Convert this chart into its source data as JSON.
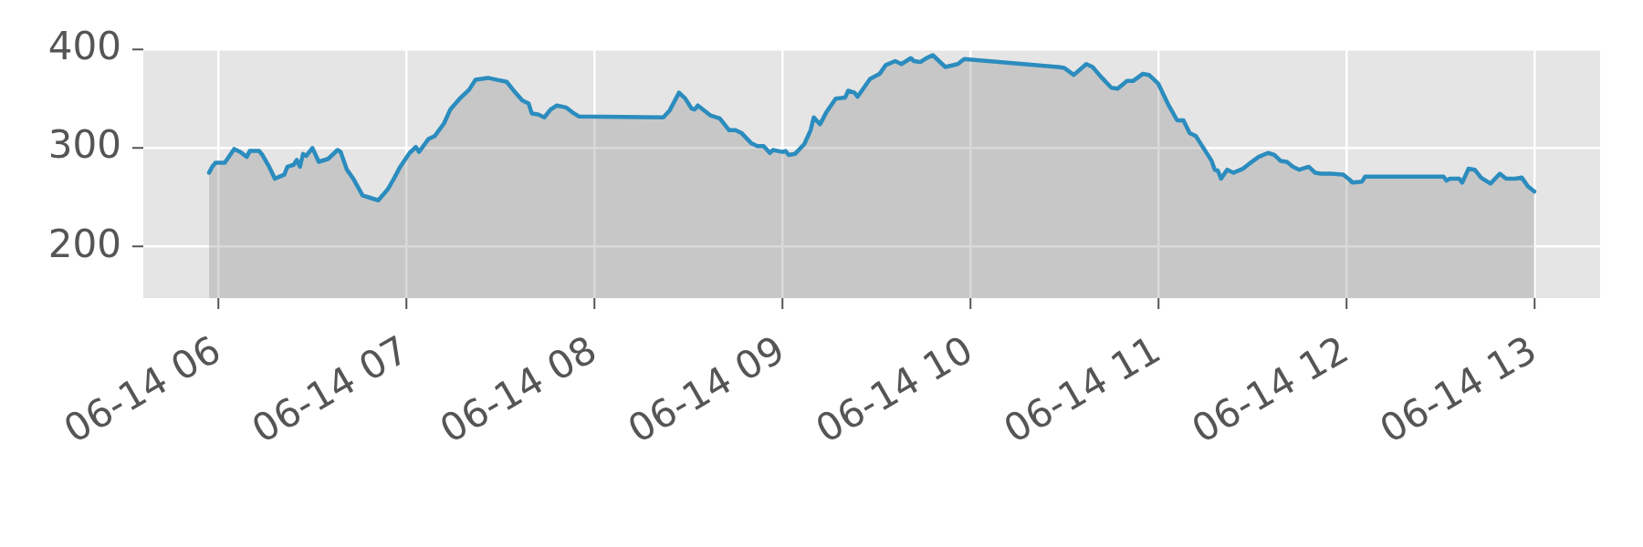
{
  "chart_data": {
    "type": "area",
    "x": [
      "--06-14T05:57",
      "--06-14T05:58",
      "--06-14T05:59",
      "--06-14T06:02",
      "--06-14T06:05",
      "--06-14T06:07",
      "--06-14T06:09",
      "--06-14T06:10",
      "--06-14T06:13",
      "--06-14T06:14",
      "--06-14T06:16",
      "--06-14T06:18",
      "--06-14T06:21",
      "--06-14T06:22",
      "--06-14T06:24",
      "--06-14T06:25",
      "--06-14T06:26",
      "--06-14T06:27",
      "--06-14T06:28",
      "--06-14T06:30",
      "--06-14T06:32",
      "--06-14T06:35",
      "--06-14T06:38",
      "--06-14T06:39",
      "--06-14T06:41",
      "--06-14T06:43",
      "--06-14T06:46",
      "--06-14T06:48",
      "--06-14T06:51",
      "--06-14T06:54",
      "--06-14T06:56",
      "--06-14T06:58",
      "--06-14T07:01",
      "--06-14T07:03",
      "--06-14T07:04",
      "--06-14T07:07",
      "--06-14T07:09",
      "--06-14T07:12",
      "--06-14T07:14",
      "--06-14T07:17",
      "--06-14T07:20",
      "--06-14T07:22",
      "--06-14T07:26",
      "--06-14T07:29",
      "--06-14T07:32",
      "--06-14T07:34",
      "--06-14T07:37",
      "--06-14T07:39",
      "--06-14T07:40",
      "--06-14T07:42",
      "--06-14T07:44",
      "--06-14T07:46",
      "--06-14T07:48",
      "--06-14T07:51",
      "--06-14T07:53",
      "--06-14T07:55",
      "--06-14T08:22",
      "--06-14T08:24",
      "--06-14T08:27",
      "--06-14T08:29",
      "--06-14T08:31",
      "--06-14T08:32",
      "--06-14T08:33",
      "--06-14T08:37",
      "--06-14T08:40",
      "--06-14T08:43",
      "--06-14T08:45",
      "--06-14T08:47",
      "--06-14T08:50",
      "--06-14T08:52",
      "--06-14T08:54",
      "--06-14T08:56",
      "--06-14T08:57",
      "--06-14T09:00",
      "--06-14T09:01",
      "--06-14T09:02",
      "--06-14T09:04",
      "--06-14T09:07",
      "--06-14T09:09",
      "--06-14T09:10",
      "--06-14T09:12",
      "--06-14T09:14",
      "--06-14T09:17",
      "--06-14T09:20",
      "--06-14T09:21",
      "--06-14T09:23",
      "--06-14T09:24",
      "--06-14T09:26",
      "--06-14T09:28",
      "--06-14T09:31",
      "--06-14T09:33",
      "--06-14T09:36",
      "--06-14T09:38",
      "--06-14T09:41",
      "--06-14T09:42",
      "--06-14T09:44",
      "--06-14T09:46",
      "--06-14T09:48",
      "--06-14T09:50",
      "--06-14T09:52",
      "--06-14T09:56",
      "--06-14T09:58",
      "--06-14T10:28",
      "--06-14T10:30",
      "--06-14T10:33",
      "--06-14T10:37",
      "--06-14T10:39",
      "--06-14T10:42",
      "--06-14T10:45",
      "--06-14T10:47",
      "--06-14T10:50",
      "--06-14T10:52",
      "--06-14T10:55",
      "--06-14T10:57",
      "--06-14T11:00",
      "--06-14T11:03",
      "--06-14T11:06",
      "--06-14T11:08",
      "--06-14T11:10",
      "--06-14T11:12",
      "--06-14T11:15",
      "--06-14T11:17",
      "--06-14T11:18",
      "--06-14T11:19",
      "--06-14T11:20",
      "--06-14T11:22",
      "--06-14T11:24",
      "--06-14T11:27",
      "--06-14T11:29",
      "--06-14T11:32",
      "--06-14T11:35",
      "--06-14T11:37",
      "--06-14T11:39",
      "--06-14T11:41",
      "--06-14T11:43",
      "--06-14T11:45",
      "--06-14T11:48",
      "--06-14T11:50",
      "--06-14T11:52",
      "--06-14T11:55",
      "--06-14T11:59",
      "--06-14T12:01",
      "--06-14T12:02",
      "--06-14T12:05",
      "--06-14T12:06",
      "--06-14T12:31",
      "--06-14T12:32",
      "--06-14T12:33",
      "--06-14T12:36",
      "--06-14T12:37",
      "--06-14T12:39",
      "--06-14T12:41",
      "--06-14T12:43",
      "--06-14T12:46",
      "--06-14T12:49",
      "--06-14T12:51",
      "--06-14T12:54",
      "--06-14T12:56",
      "--06-14T12:58",
      "--06-14T13:00"
    ],
    "values": [
      275,
      281,
      285,
      285,
      299,
      296,
      291,
      297,
      297,
      293,
      282,
      269,
      273,
      281,
      283,
      288,
      281,
      294,
      292,
      300,
      286,
      289,
      298,
      296,
      278,
      269,
      252,
      250,
      247,
      258,
      269,
      281,
      295,
      301,
      296,
      309,
      312,
      325,
      339,
      350,
      359,
      369,
      371,
      369,
      367,
      359,
      348,
      345,
      335,
      334,
      331,
      339,
      343,
      341,
      336,
      332,
      331,
      338,
      356,
      350,
      340,
      339,
      343,
      333,
      330,
      318,
      318,
      315,
      305,
      302,
      302,
      295,
      298,
      296,
      297,
      293,
      294,
      304,
      318,
      331,
      324,
      336,
      350,
      351,
      358,
      356,
      352,
      361,
      370,
      375,
      384,
      388,
      385,
      391,
      388,
      387,
      391,
      394,
      388,
      382,
      385,
      390,
      382,
      381,
      374,
      385,
      382,
      371,
      361,
      360,
      368,
      368,
      375,
      374,
      365,
      345,
      328,
      328,
      315,
      312,
      297,
      287,
      278,
      277,
      269,
      278,
      275,
      279,
      284,
      291,
      295,
      293,
      287,
      286,
      281,
      278,
      281,
      275,
      274,
      274,
      273,
      268,
      265,
      266,
      271,
      271,
      267,
      269,
      269,
      265,
      279,
      278,
      270,
      264,
      274,
      269,
      269,
      270,
      261,
      256
    ],
    "color": "#2b8cbe",
    "xlim": [
      "--06-14T05:36",
      "--06-14T13:21"
    ],
    "xticks": [
      {
        "value": "--06-14T06:00",
        "label": "06-14 06"
      },
      {
        "value": "--06-14T07:00",
        "label": "06-14 07"
      },
      {
        "value": "--06-14T08:00",
        "label": "06-14 08"
      },
      {
        "value": "--06-14T09:00",
        "label": "06-14 09"
      },
      {
        "value": "--06-14T10:00",
        "label": "06-14 10"
      },
      {
        "value": "--06-14T11:00",
        "label": "06-14 11"
      },
      {
        "value": "--06-14T12:00",
        "label": "06-14 12"
      },
      {
        "value": "--06-14T13:00",
        "label": "06-14 13"
      }
    ],
    "ylim": [
      148,
      400
    ],
    "yticks": [
      200,
      300,
      400
    ],
    "grid": true
  }
}
